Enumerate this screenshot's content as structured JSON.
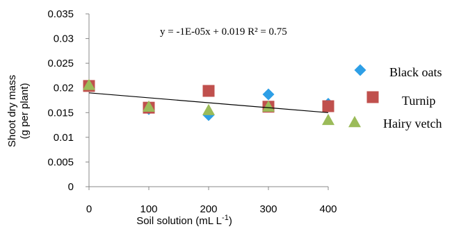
{
  "chart_data": {
    "type": "scatter",
    "xlabel_main": "Soil solution  (mL L",
    "xlabel_sup": "-1",
    "xlabel_close": ")",
    "ylabel_line1": "Shoot dry mass",
    "ylabel_line2": "(g per plant)",
    "xlim": [
      0,
      400
    ],
    "ylim": [
      0,
      0.035
    ],
    "xticks": [
      "0",
      "100",
      "200",
      "300",
      "400"
    ],
    "yticks": [
      "0",
      "0.005",
      "0.01",
      "0.015",
      "0.02",
      "0.025",
      "0.03",
      "0.035"
    ],
    "grid": false,
    "legend_position": "right",
    "series": [
      {
        "name": "Black oats",
        "marker": "diamond",
        "color": "#2E9FE6",
        "x": [
          0,
          100,
          200,
          300,
          400
        ],
        "y": [
          0.0205,
          0.0157,
          0.0145,
          0.0187,
          0.0168
        ]
      },
      {
        "name": "Turnip",
        "marker": "square",
        "color": "#C0504D",
        "x": [
          0,
          100,
          200,
          300,
          400
        ],
        "y": [
          0.0204,
          0.016,
          0.0194,
          0.0162,
          0.0163
        ]
      },
      {
        "name": "Hairy vetch",
        "marker": "triangle",
        "color": "#9BBB59",
        "x": [
          0,
          100,
          200,
          300,
          400
        ],
        "y": [
          0.0206,
          0.0162,
          0.0155,
          0.0162,
          0.0135
        ]
      }
    ],
    "trendline": {
      "slope": -1e-05,
      "intercept": 0.019,
      "x_range": [
        0,
        400
      ],
      "color": "#000000"
    },
    "annotation": "y = -1E-05x + 0.019  R² = 0.75"
  }
}
